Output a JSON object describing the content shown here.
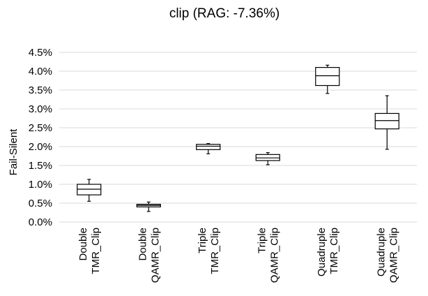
{
  "chart_data": {
    "type": "box",
    "title": "clip (RAG: -7.36%)",
    "ylabel": "Fail-Silent",
    "xlabel": "",
    "ylim": [
      0,
      4.5
    ],
    "yticks": [
      0,
      0.5,
      1.0,
      1.5,
      2.0,
      2.5,
      3.0,
      3.5,
      4.0,
      4.5
    ],
    "ytick_labels": [
      "0.0%",
      "0.5%",
      "1.0%",
      "1.5%",
      "2.0%",
      "2.5%",
      "3.0%",
      "3.5%",
      "4.0%",
      "4.5%"
    ],
    "grid": true,
    "legend": "none",
    "categories": [
      [
        "Double",
        "TMR_Clip"
      ],
      [
        "Double",
        "QAMR_Clip"
      ],
      [
        "Triple",
        "TMR_Clip"
      ],
      [
        "Triple",
        "QAMR_Clip"
      ],
      [
        "Quadruple",
        "TMR_Clip"
      ],
      [
        "Quadruple",
        "QAMR_Clip"
      ]
    ],
    "boxes": [
      {
        "min": 0.55,
        "q1": 0.72,
        "median": 0.87,
        "q3": 1.0,
        "max": 1.13
      },
      {
        "min": 0.28,
        "q1": 0.4,
        "median": 0.44,
        "q3": 0.47,
        "max": 0.53
      },
      {
        "min": 1.81,
        "q1": 1.92,
        "median": 2.01,
        "q3": 2.06,
        "max": 2.08
      },
      {
        "min": 1.52,
        "q1": 1.63,
        "median": 1.7,
        "q3": 1.79,
        "max": 1.84
      },
      {
        "min": 3.41,
        "q1": 3.62,
        "median": 3.88,
        "q3": 4.1,
        "max": 4.16
      },
      {
        "min": 1.93,
        "q1": 2.47,
        "median": 2.69,
        "q3": 2.88,
        "max": 3.35
      }
    ],
    "colors": {
      "box_stroke": "#000000",
      "box_fill": "#ffffff",
      "grid": "#d9d9d9"
    }
  }
}
